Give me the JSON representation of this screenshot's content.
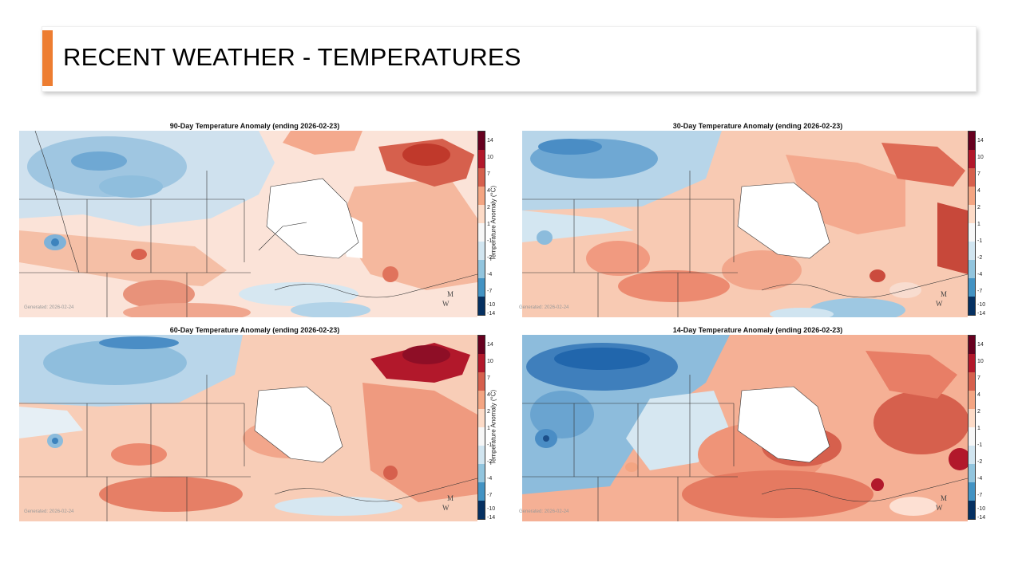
{
  "slide": {
    "title": "RECENT WEATHER - TEMPERATURES",
    "accent_color": "#ed7d31"
  },
  "legend": {
    "label": "Temperature Anomaly (°C)",
    "ticks": [
      "14",
      "10",
      "7",
      "4",
      "2",
      "1",
      "-1",
      "-2",
      "-4",
      "-7",
      "-10",
      "-14"
    ],
    "colors": [
      "#67001f",
      "#b2182b",
      "#d6604d",
      "#f4a582",
      "#fddbc7",
      "#f7f7f7",
      "#d1e5f0",
      "#92c5de",
      "#4393c3",
      "#2166ac",
      "#053061"
    ]
  },
  "maps": [
    {
      "title": "90-Day Temperature Anomaly (ending 2026-02-23)",
      "generated": "Generated: 2026-02-24",
      "logo": "MW"
    },
    {
      "title": "30-Day Temperature Anomaly (ending 2026-02-23)",
      "generated": "Generated: 2026-02-24",
      "logo": "MW"
    },
    {
      "title": "60-Day Temperature Anomaly (ending 2026-02-23)",
      "generated": "Generated: 2026-02-24",
      "logo": "MW"
    },
    {
      "title": "14-Day Temperature Anomaly (ending 2026-02-23)",
      "generated": "Generated: 2026-02-24",
      "logo": "MW"
    }
  ]
}
